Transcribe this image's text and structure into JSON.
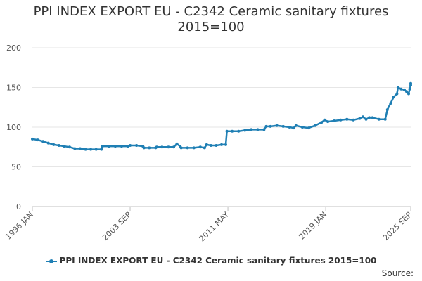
{
  "chart_data": {
    "type": "line",
    "title_line1": "PPI INDEX EXPORT EU - C2342 Ceramic sanitary fixtures",
    "title_line2": "2015=100",
    "xlabel": "",
    "ylabel": "",
    "ylim": [
      0,
      200
    ],
    "yticks": [
      0,
      50,
      100,
      150,
      200
    ],
    "x_ticks": [
      "1996 JAN",
      "2003 SEP",
      "2011 MAY",
      "2019 JAN",
      "2025 SEP"
    ],
    "x_range": [
      "1996 JAN",
      "2025 SEP"
    ],
    "grid": true,
    "legend_position": "bottom",
    "series": [
      {
        "name": "PPI INDEX EXPORT EU - C2342 Ceramic sanitary fixtures 2015=100",
        "color": "#1f7fb4",
        "points": [
          [
            "1996 JAN",
            85
          ],
          [
            "1996 JUN",
            84
          ],
          [
            "1996 NOV",
            82
          ],
          [
            "1997 APR",
            80
          ],
          [
            "1997 SEP",
            78
          ],
          [
            "1998 FEB",
            77
          ],
          [
            "1998 JUL",
            76
          ],
          [
            "1998 DEC",
            75
          ],
          [
            "1999 MAY",
            73
          ],
          [
            "1999 OCT",
            73
          ],
          [
            "2000 MAR",
            72
          ],
          [
            "2000 AUG",
            72
          ],
          [
            "2001 JAN",
            72
          ],
          [
            "2001 JUN",
            72
          ],
          [
            "2001 JUL",
            76
          ],
          [
            "2002 JAN",
            76
          ],
          [
            "2002 JUL",
            76
          ],
          [
            "2003 JAN",
            76
          ],
          [
            "2003 JUL",
            76
          ],
          [
            "2003 SEP",
            77
          ],
          [
            "2004 MAR",
            77
          ],
          [
            "2004 SEP",
            76
          ],
          [
            "2004 OCT",
            74
          ],
          [
            "2005 MAR",
            74
          ],
          [
            "2005 SEP",
            74
          ],
          [
            "2005 OCT",
            75
          ],
          [
            "2006 MAR",
            75
          ],
          [
            "2006 SEP",
            75
          ],
          [
            "2007 FEB",
            75
          ],
          [
            "2007 MAY",
            79
          ],
          [
            "2007 AUG",
            76
          ],
          [
            "2007 SEP",
            74
          ],
          [
            "2008 MAR",
            74
          ],
          [
            "2008 SEP",
            74
          ],
          [
            "2009 MAR",
            75
          ],
          [
            "2009 JUL",
            74
          ],
          [
            "2009 SEP",
            78
          ],
          [
            "2010 JAN",
            77
          ],
          [
            "2010 JUN",
            77
          ],
          [
            "2010 NOV",
            78
          ],
          [
            "2011 MAR",
            78
          ],
          [
            "2011 APR",
            95
          ],
          [
            "2011 SEP",
            95
          ],
          [
            "2012 MAR",
            95
          ],
          [
            "2012 SEP",
            96
          ],
          [
            "2013 MAR",
            97
          ],
          [
            "2013 SEP",
            97
          ],
          [
            "2014 MAR",
            97
          ],
          [
            "2014 MAY",
            101
          ],
          [
            "2014 SEP",
            101
          ],
          [
            "2015 MAR",
            102
          ],
          [
            "2015 SEP",
            101
          ],
          [
            "2016 MAR",
            100
          ],
          [
            "2016 JUL",
            99
          ],
          [
            "2016 SEP",
            102
          ],
          [
            "2017 MAR",
            100
          ],
          [
            "2017 SEP",
            99
          ],
          [
            "2018 MAR",
            102
          ],
          [
            "2018 SEP",
            106
          ],
          [
            "2018 DEC",
            109
          ],
          [
            "2019 MAR",
            107
          ],
          [
            "2019 SEP",
            108
          ],
          [
            "2020 MAR",
            109
          ],
          [
            "2020 SEP",
            110
          ],
          [
            "2021 MAR",
            109
          ],
          [
            "2021 SEP",
            111
          ],
          [
            "2021 DEC",
            113
          ],
          [
            "2022 MAR",
            110
          ],
          [
            "2022 JUN",
            112
          ],
          [
            "2022 SEP",
            112
          ],
          [
            "2023 MAR",
            110
          ],
          [
            "2023 SEP",
            110
          ],
          [
            "2023 NOV",
            122
          ],
          [
            "2024 FEB",
            130
          ],
          [
            "2024 MAY",
            138
          ],
          [
            "2024 AUG",
            142
          ],
          [
            "2024 SEP",
            150
          ],
          [
            "2024 DEC",
            148
          ],
          [
            "2025 MAR",
            147
          ],
          [
            "2025 MAY",
            145
          ],
          [
            "2025 JUL",
            142
          ],
          [
            "2025 AUG",
            148
          ],
          [
            "2025 SEP",
            153
          ],
          [
            "2025 SEP",
            155
          ]
        ]
      }
    ]
  },
  "legend": {
    "label": "PPI INDEX EXPORT EU - C2342 Ceramic sanitary fixtures 2015=100"
  },
  "source": {
    "label": "Source:"
  }
}
